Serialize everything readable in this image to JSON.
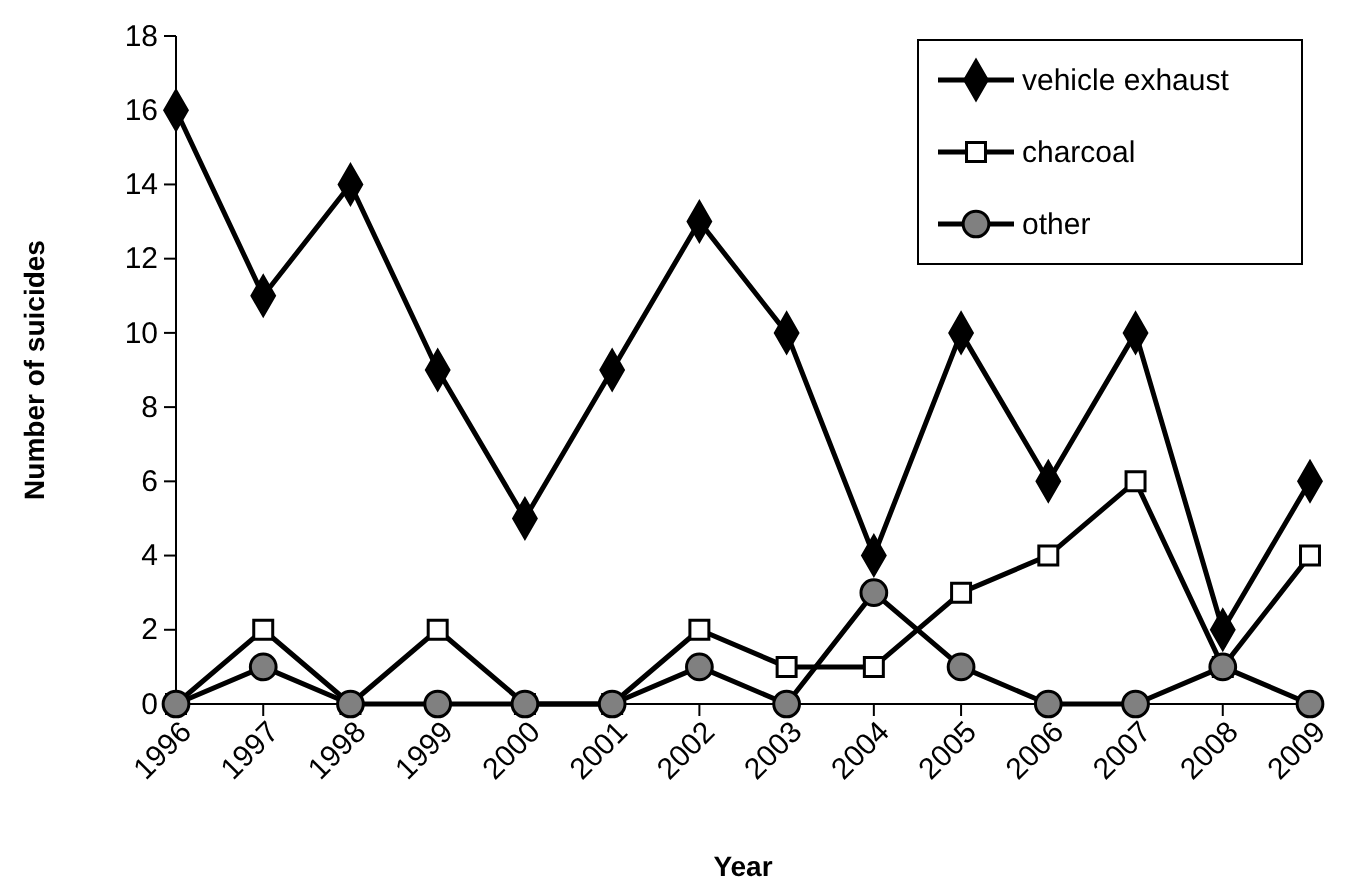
{
  "chart_data": {
    "type": "line",
    "xlabel": "Year",
    "ylabel": "Number of suicides",
    "categories": [
      "1996",
      "1997",
      "1998",
      "1999",
      "2000",
      "2001",
      "2002",
      "2003",
      "2004",
      "2005",
      "2006",
      "2007",
      "2008",
      "2009"
    ],
    "series": [
      {
        "name": "vehicle exhaust",
        "color": "#000000",
        "marker": "diamond",
        "values": [
          16,
          11,
          14,
          9,
          5,
          9,
          13,
          10,
          4,
          10,
          6,
          10,
          2,
          6
        ]
      },
      {
        "name": "charcoal",
        "color": "#ffffff",
        "marker": "square",
        "values": [
          0,
          2,
          0,
          2,
          0,
          0,
          2,
          1,
          1,
          3,
          4,
          6,
          1,
          4
        ]
      },
      {
        "name": "other",
        "color": "#808080",
        "marker": "circle",
        "values": [
          0,
          1,
          0,
          0,
          0,
          0,
          1,
          0,
          3,
          1,
          0,
          0,
          1,
          0
        ]
      }
    ],
    "ylim": [
      0,
      18
    ],
    "yticks": [
      0,
      2,
      4,
      6,
      8,
      10,
      12,
      14,
      16,
      18
    ],
    "grid": false,
    "legend": "top right",
    "line_style": "solid"
  }
}
